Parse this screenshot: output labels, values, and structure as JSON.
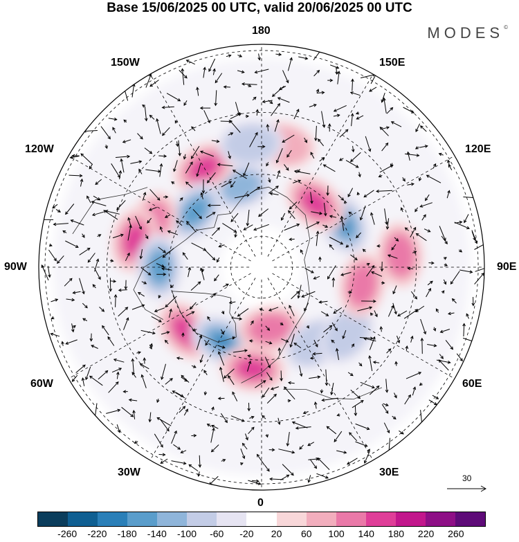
{
  "title": "Base 15/06/2025 00 UTC, valid 20/06/2025 00 UTC",
  "brand": "MODES",
  "brand_mark": "©",
  "longitude_labels": {
    "l180": "180",
    "l150w": "150W",
    "l150e": "150E",
    "l120w": "120W",
    "l120e": "120E",
    "l90w": "90W",
    "l90e": "90E",
    "l60w": "60W",
    "l60e": "60E",
    "l30w": "30W",
    "l30e": "30E",
    "l0": "0"
  },
  "reference_vector": "30",
  "colorbar": {
    "colors": [
      "#0b3d5c",
      "#0f5f92",
      "#2a7fb8",
      "#5a9dcb",
      "#8fb5da",
      "#c3cce6",
      "#e6e4f2",
      "#ffffff",
      "#f8d7d9",
      "#f2aebd",
      "#ea79a8",
      "#df3e98",
      "#c2178c",
      "#8e0f86",
      "#5e0b78"
    ],
    "tick_labels": [
      "-260",
      "-220",
      "-180",
      "-140",
      "-100",
      "-60",
      "-20",
      "20",
      "60",
      "100",
      "140",
      "180",
      "220",
      "260"
    ]
  },
  "anomaly_features": [
    {
      "sign": "neg",
      "level": 2,
      "lon": -165,
      "colat": 27
    },
    {
      "sign": "pos",
      "level": 3,
      "lon": -150,
      "colat": 37
    },
    {
      "sign": "neg",
      "level": 3,
      "lon": -130,
      "colat": 28
    },
    {
      "sign": "pos",
      "level": 2,
      "lon": -112,
      "colat": 38
    },
    {
      "sign": "pos",
      "level": 3,
      "lon": -102,
      "colat": 42
    },
    {
      "sign": "neg",
      "level": 3,
      "lon": -90,
      "colat": 33
    },
    {
      "sign": "pos",
      "level": 3,
      "lon": -50,
      "colat": 32
    },
    {
      "sign": "neg",
      "level": 4,
      "lon": -28,
      "colat": 27
    },
    {
      "sign": "pos",
      "level": 3,
      "lon": -5,
      "colat": 33
    },
    {
      "sign": "pos",
      "level": 2,
      "lon": 8,
      "colat": 20
    },
    {
      "sign": "neg",
      "level": 1,
      "lon": 35,
      "colat": 30
    },
    {
      "sign": "neg",
      "level": 1,
      "lon": 52,
      "colat": 35
    },
    {
      "sign": "pos",
      "level": 2,
      "lon": 80,
      "colat": 33
    },
    {
      "sign": "pos",
      "level": 2,
      "lon": 95,
      "colat": 45
    },
    {
      "sign": "neg",
      "level": 4,
      "lon": 118,
      "colat": 30
    },
    {
      "sign": "pos",
      "level": 3,
      "lon": 140,
      "colat": 27
    },
    {
      "sign": "pos",
      "level": 1,
      "lon": 170,
      "colat": 40
    },
    {
      "sign": "neg",
      "level": 1,
      "lon": -175,
      "colat": 40
    }
  ]
}
